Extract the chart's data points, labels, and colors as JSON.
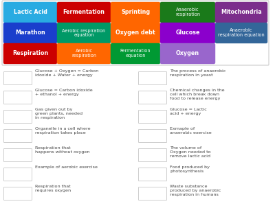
{
  "title_boxes": [
    {
      "text": "Lactic Acid",
      "color": "#29ABE2",
      "row": 0,
      "col": 0
    },
    {
      "text": "Fermentation",
      "color": "#CC0000",
      "row": 0,
      "col": 1
    },
    {
      "text": "Sprinting",
      "color": "#FF6600",
      "row": 0,
      "col": 2
    },
    {
      "text": "Anaerobic\nrespiration",
      "color": "#1A7A1A",
      "row": 0,
      "col": 3
    },
    {
      "text": "Mitochondria",
      "color": "#7B2D8B",
      "row": 0,
      "col": 4
    },
    {
      "text": "Marathon",
      "color": "#1A3ECC",
      "row": 1,
      "col": 0
    },
    {
      "text": "Aerobic respiration\nequation",
      "color": "#009966",
      "row": 1,
      "col": 1
    },
    {
      "text": "Oxygen debt",
      "color": "#FF6600",
      "row": 1,
      "col": 2
    },
    {
      "text": "Glucose",
      "color": "#8B00CC",
      "row": 1,
      "col": 3
    },
    {
      "text": "Anaerobic\nrespiration equation",
      "color": "#336699",
      "row": 1,
      "col": 4
    },
    {
      "text": "Respiration",
      "color": "#CC0000",
      "row": 2,
      "col": 0
    },
    {
      "text": "Aerobic\nrespiration",
      "color": "#FF6600",
      "row": 2,
      "col": 1
    },
    {
      "text": "Fermentation\nequation",
      "color": "#009933",
      "row": 2,
      "col": 2
    },
    {
      "text": "Oxygen",
      "color": "#9966CC",
      "row": 2,
      "col": 3
    }
  ],
  "clues_left": [
    "Glucose + Oxygen = Carbon\nidoxide + Water + energy",
    "Glucose = Carbon idoxide\n+ ethanol + energy",
    "Gas given out by\ngreen plants, needed\nin respiration",
    "Organelle in a cell where\nrespiration takes place",
    "Respiration that\nhappens without oxygen",
    "Example of aerobic exercise",
    "Respiration that\nrequires oxygen"
  ],
  "clues_right": [
    "The process of anaerobic\nrespiration in yeast",
    "Chemical changes in the\ncell which break down\nfood to release energy",
    "Glucose = Lactic\nacid + energy",
    "Exmaple of\nanaerobic exercise",
    "The volume of\nOxygen needed to\nremove lactic acid",
    "Food produced by\nphotosynthesis",
    "Waste substance\nproduced by anaerobic\nrespiration in humans"
  ],
  "bg_color": "#FFFFFF",
  "box_border": "#BBBBBB",
  "text_color": "#444444",
  "top_border_color": "#CCCCCC"
}
